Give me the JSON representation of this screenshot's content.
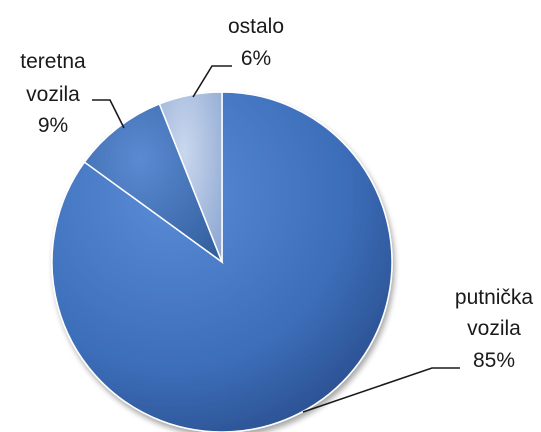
{
  "chart_data": {
    "type": "pie",
    "slices": [
      {
        "label_lines": [
          "putnička",
          "vozila"
        ],
        "value": 85,
        "value_label": "85%",
        "color": "#3c6db8"
      },
      {
        "label_lines": [
          "teretna",
          "vozila"
        ],
        "value": 9,
        "value_label": "9%",
        "color": "#3f71bc"
      },
      {
        "label_lines": [
          "ostalo"
        ],
        "value": 6,
        "value_label": "6%",
        "color": "#a9bedf"
      }
    ],
    "start_angle_deg": 0,
    "direction": "clockwise",
    "title": "",
    "legend": "none"
  }
}
